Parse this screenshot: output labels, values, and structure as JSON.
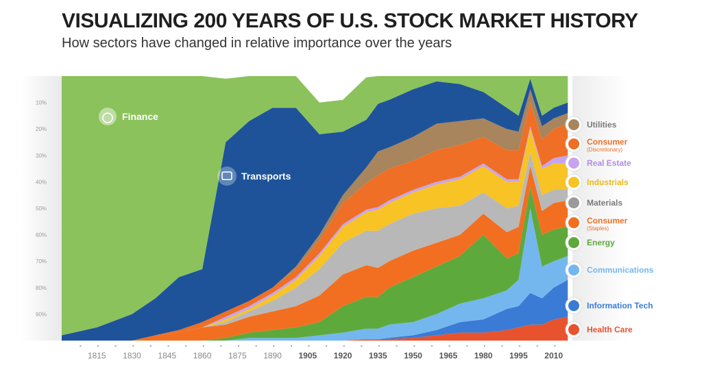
{
  "title": "VISUALIZING 200 YEARS OF U.S. STOCK MARKET HISTORY",
  "subtitle": "How sectors have changed in relative importance over the years",
  "chart_data": {
    "type": "area",
    "stacking": "percent",
    "title": "VISUALIZING 200 YEARS OF U.S. STOCK MARKET HISTORY",
    "subtitle": "How sectors have changed in relative importance over the years",
    "xlabel": "",
    "ylabel": "",
    "xlim": [
      1800,
      2018
    ],
    "ylim": [
      0,
      100
    ],
    "x_ticks": [
      1815,
      1830,
      1845,
      1860,
      1875,
      1890,
      1905,
      1920,
      1935,
      1950,
      1965,
      1980,
      1995,
      2010
    ],
    "x_ticks_bold": [
      1905,
      1920,
      1935,
      1950,
      1965,
      1980,
      1995,
      2010
    ],
    "y_ticks": [
      10,
      20,
      30,
      40,
      50,
      60,
      70,
      80,
      90
    ],
    "y_tick_labels": [
      "10%",
      "20%",
      "30%",
      "40%",
      "50%",
      "60%",
      "70%",
      "80%",
      "90%"
    ],
    "x": [
      1800,
      1815,
      1830,
      1840,
      1850,
      1860,
      1870,
      1880,
      1890,
      1900,
      1910,
      1920,
      1930,
      1935,
      1940,
      1950,
      1960,
      1970,
      1980,
      1990,
      1995,
      2000,
      2005,
      2010,
      2016
    ],
    "series": [
      {
        "name": "Health Care",
        "color": "#e8532e",
        "values": [
          0,
          0,
          0,
          0,
          0,
          0,
          0,
          0,
          0,
          0,
          0,
          0,
          0.5,
          0.5,
          0.6,
          1,
          2,
          3,
          3,
          4,
          5,
          6,
          6,
          8,
          9
        ]
      },
      {
        "name": "Information Tech",
        "color": "#3a7bd5",
        "values": [
          0,
          0,
          0,
          0,
          0,
          0,
          0,
          0,
          0,
          0,
          0,
          0,
          0,
          0,
          0.5,
          1,
          2,
          4,
          5,
          8,
          8,
          12,
          10,
          12,
          14
        ]
      },
      {
        "name": "Communications",
        "color": "#74b7ef",
        "values": [
          0,
          0,
          0,
          0,
          0,
          0,
          0,
          1,
          1,
          1,
          2,
          3,
          4,
          4,
          5,
          5,
          6,
          7,
          8,
          7,
          10,
          32,
          12,
          10,
          9
        ]
      },
      {
        "name": "Energy",
        "color": "#5ea93c",
        "values": [
          0,
          0,
          0,
          0,
          0,
          0,
          1,
          2,
          3,
          4,
          5,
          10,
          12,
          12,
          14,
          17,
          18,
          18,
          24,
          12,
          10,
          8,
          12,
          12,
          11
        ]
      },
      {
        "name": "Consumer (Staples)",
        "color": "#f26f21",
        "values": [
          0,
          0,
          0,
          2,
          3,
          5,
          5,
          6,
          7,
          8,
          10,
          12,
          12,
          11,
          10,
          10,
          9,
          8,
          8,
          10,
          10,
          8,
          9,
          10,
          10
        ]
      },
      {
        "name": "Materials",
        "color": "#b8b8b8",
        "values": [
          0,
          0,
          0,
          0,
          0,
          0,
          1,
          2,
          4,
          7,
          10,
          12,
          13,
          14,
          14,
          14,
          13,
          11,
          8,
          9,
          8,
          5,
          6,
          5,
          4
        ]
      },
      {
        "name": "Industrials",
        "color": "#f7c325",
        "values": [
          0,
          0,
          0,
          0,
          0,
          0,
          1,
          1,
          2,
          3,
          5,
          6,
          7,
          8,
          8,
          8,
          9,
          10,
          10,
          10,
          9,
          9,
          10,
          10,
          10
        ]
      },
      {
        "name": "Real Estate",
        "color": "#c6a4ee",
        "values": [
          0,
          0,
          0,
          0,
          0,
          0,
          1,
          1,
          1,
          1,
          1,
          1,
          1,
          1,
          1,
          1,
          1,
          1,
          1,
          1,
          1,
          1,
          1,
          2,
          3
        ]
      },
      {
        "name": "Consumer (Discretionary)",
        "color": "#ee6f25",
        "values": [
          0,
          0,
          0,
          0,
          1,
          2,
          2,
          2,
          2,
          3,
          5,
          8,
          10,
          12,
          12,
          11,
          12,
          12,
          10,
          11,
          11,
          9,
          10,
          11,
          12
        ]
      },
      {
        "name": "Utilities",
        "color": "#a8855d",
        "values": [
          0,
          0,
          0,
          0,
          0,
          0,
          0,
          0,
          0,
          1,
          2,
          3,
          6,
          9,
          8,
          9,
          10,
          9,
          7,
          8,
          7,
          5,
          5,
          4,
          4
        ]
      },
      {
        "name": "Transports",
        "color": "#1e539a",
        "values": [
          2,
          5,
          10,
          14,
          20,
          20,
          64,
          68,
          68,
          60,
          38,
          24,
          18,
          18,
          18,
          18,
          16,
          14,
          10,
          8,
          6,
          4,
          4,
          4,
          4
        ]
      },
      {
        "name": "Finance",
        "color": "#8bc25b",
        "values": [
          98,
          95,
          90,
          84,
          76,
          73,
          24,
          17,
          12,
          12,
          12,
          12,
          16,
          10.5,
          8.9,
          5,
          2,
          3,
          6,
          12,
          15,
          1,
          15,
          12,
          10
        ]
      }
    ]
  },
  "labels": {
    "finance": "Finance",
    "transports": "Transports",
    "legend": [
      {
        "name": "Utilities",
        "sub": "",
        "color": "#a8855d",
        "text_color": "#7a7a7a",
        "icon": "utilities-icon"
      },
      {
        "name": "Consumer",
        "sub": "(Discretionary)",
        "color": "#ee6f25",
        "text_color": "#ee6f25",
        "icon": "shopping-bag-icon"
      },
      {
        "name": "Real Estate",
        "sub": "",
        "color": "#c6a4ee",
        "text_color": "#b18ce6",
        "icon": "building-icon"
      },
      {
        "name": "Industrials",
        "sub": "",
        "color": "#f7c325",
        "text_color": "#f0b719",
        "icon": "factory-icon"
      },
      {
        "name": "Materials",
        "sub": "",
        "color": "#9a9a9a",
        "text_color": "#7a7a7a",
        "icon": "diamond-icon"
      },
      {
        "name": "Consumer",
        "sub": "(Staples)",
        "color": "#f26f21",
        "text_color": "#ee6f25",
        "icon": "cart-icon"
      },
      {
        "name": "Energy",
        "sub": "",
        "color": "#5ea93c",
        "text_color": "#5ea93c",
        "icon": "energy-icon"
      },
      {
        "name": "Communications",
        "sub": "",
        "color": "#74b7ef",
        "text_color": "#74b7ef",
        "icon": "satellite-icon"
      },
      {
        "name": "Information Tech",
        "sub": "",
        "color": "#3a7bd5",
        "text_color": "#3a7bd5",
        "icon": "chip-icon"
      },
      {
        "name": "Health Care",
        "sub": "",
        "color": "#e8532e",
        "text_color": "#e8532e",
        "icon": "cross-icon"
      }
    ]
  }
}
